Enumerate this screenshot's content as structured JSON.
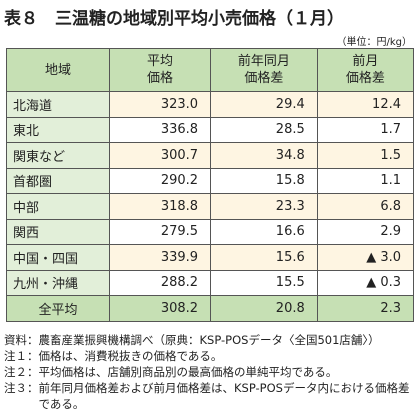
{
  "title": "表８　三温糖の地域別平均小売価格（１月）",
  "unit": "（単位：円/kg）",
  "table": {
    "headers": [
      [
        "地域"
      ],
      [
        "平均",
        "価格"
      ],
      [
        "前年同月",
        "価格差"
      ],
      [
        "前月",
        "価格差"
      ]
    ],
    "rows": [
      [
        "北海道",
        "323.0",
        "29.4",
        "12.4"
      ],
      [
        "東北",
        "336.8",
        "28.5",
        "1.7"
      ],
      [
        "関東など",
        "300.7",
        "34.8",
        "1.5"
      ],
      [
        "首都圏",
        "290.2",
        "15.8",
        "1.1"
      ],
      [
        "中部",
        "318.8",
        "23.3",
        "6.8"
      ],
      [
        "関西",
        "279.5",
        "16.6",
        "2.9"
      ],
      [
        "中国・四国",
        "339.9",
        "15.6",
        "▲ 3.0"
      ],
      [
        "九州・沖縄",
        "288.2",
        "15.5",
        "▲ 0.3"
      ]
    ],
    "total": [
      "全平均",
      "308.2",
      "20.8",
      "2.3"
    ]
  },
  "notes": [
    [
      "資料：",
      "農畜産業振興機構調べ（原典：KSP-POSデータ〈全国501店舗〉）"
    ],
    [
      "注１：",
      "価格は、消費税抜きの価格である。"
    ],
    [
      "注２：",
      "平均価格は、店舗別商品別の最高価格の単純平均である。"
    ],
    [
      "注３：",
      "前年同月価格差および前月価格差は、KSP-POSデータ内における価格差である。"
    ]
  ]
}
